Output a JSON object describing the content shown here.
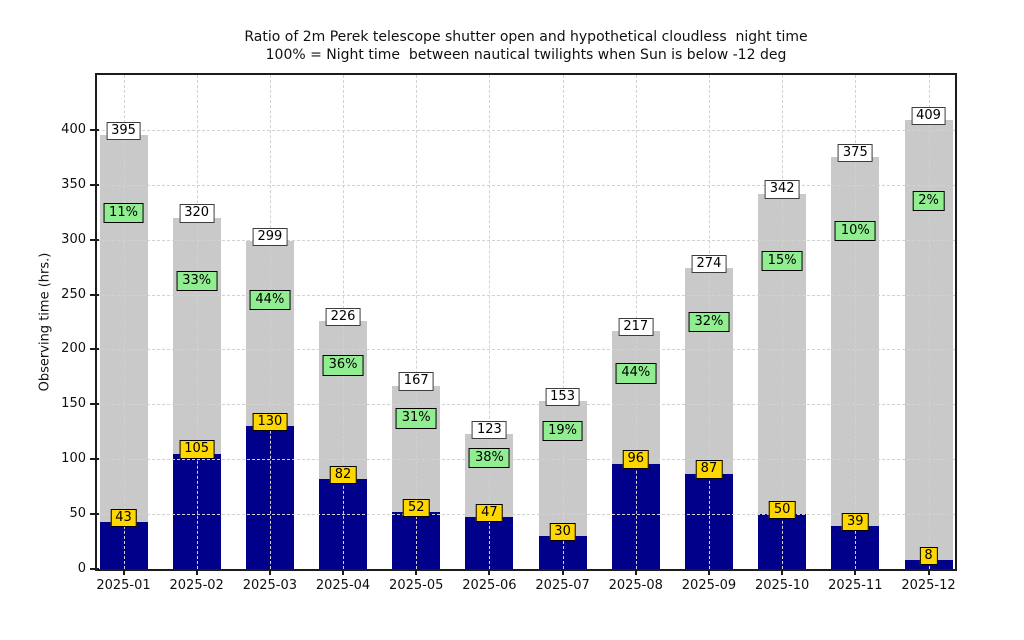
{
  "chart_data": {
    "type": "bar",
    "title": "Ratio of 2m Perek telescope shutter open and hypothetical cloudless  night time",
    "subtitle": "100% = Night time  between nautical twilights when Sun is below -12 deg",
    "categories": [
      "2025-01",
      "2025-02",
      "2025-03",
      "2025-04",
      "2025-05",
      "2025-06",
      "2025-07",
      "2025-08",
      "2025-09",
      "2025-10",
      "2025-11",
      "2025-12"
    ],
    "series": [
      {
        "name": "night_time_total_hrs",
        "values": [
          395,
          320,
          299,
          226,
          167,
          123,
          153,
          217,
          274,
          342,
          375,
          409
        ]
      },
      {
        "name": "shutter_open_hrs",
        "values": [
          43,
          105,
          130,
          82,
          52,
          47,
          30,
          96,
          87,
          50,
          39,
          8
        ]
      }
    ],
    "percent_labels": [
      "11%",
      "33%",
      "44%",
      "36%",
      "31%",
      "38%",
      "19%",
      "44%",
      "32%",
      "15%",
      "10%",
      "2%"
    ],
    "ylabel": "Observing time (hrs.)",
    "xlabel": "",
    "yticks": [
      0,
      50,
      100,
      150,
      200,
      250,
      300,
      350,
      400
    ],
    "ylim": [
      0,
      450
    ],
    "grid": true,
    "legend": "none",
    "colors": {
      "total_bar": "#c9c9c9",
      "open_bar": "#00008b",
      "total_label_bg": "#ffffff",
      "open_label_bg": "#ffd700",
      "percent_label_bg": "#90ee90"
    }
  }
}
